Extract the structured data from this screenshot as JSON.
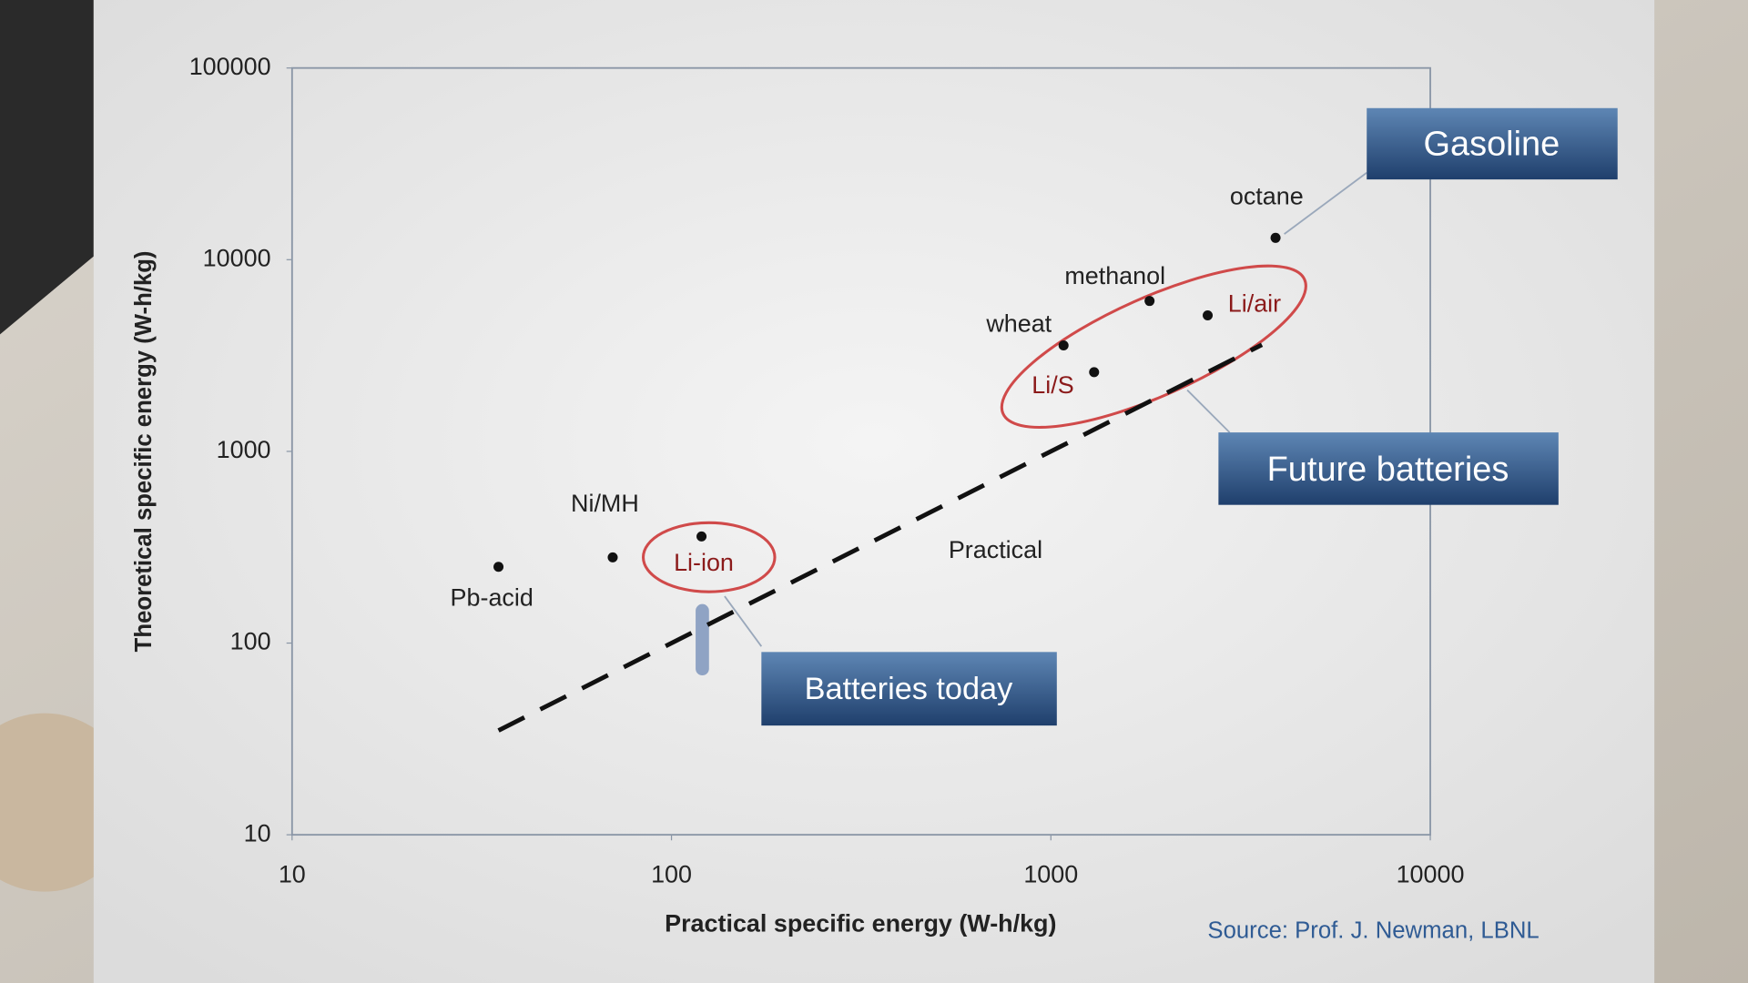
{
  "chart_data": {
    "type": "scatter",
    "xlabel": "Practical specific energy (W-h/kg)",
    "ylabel": "Theoretical specific energy (W-h/kg)",
    "x": [
      35,
      70,
      120,
      1080,
      1300,
      1820,
      2590,
      3910
    ],
    "values": [
      250,
      280,
      360,
      3570,
      2590,
      6090,
      5120,
      13000
    ],
    "point_labels": [
      "Pb-acid",
      "Ni/MH",
      "Li-ion",
      "wheat",
      "Li/S",
      "methanol",
      "Li/air",
      "octane"
    ],
    "point_label_colors": [
      "#222222",
      "#222222",
      "#8b1a1a",
      "#222222",
      "#8b1a1a",
      "#222222",
      "#8b1a1a",
      "#222222"
    ],
    "point_color": "#111111",
    "xlim": [
      10,
      10000
    ],
    "ylim": [
      10,
      100000
    ],
    "xticks": [
      10,
      100,
      1000,
      10000
    ],
    "yticks": [
      10,
      100,
      1000,
      10000,
      100000
    ],
    "log_x": true,
    "log_y": true,
    "trend": {
      "name": "Practical",
      "x": [
        35,
        3600
      ],
      "values": [
        35,
        3600
      ],
      "color": "#111111",
      "dashed": true
    },
    "callouts": [
      "Gasoline",
      "Future batteries",
      "Batteries today"
    ],
    "source": "Source: Prof. J. Newman, LBNL"
  }
}
